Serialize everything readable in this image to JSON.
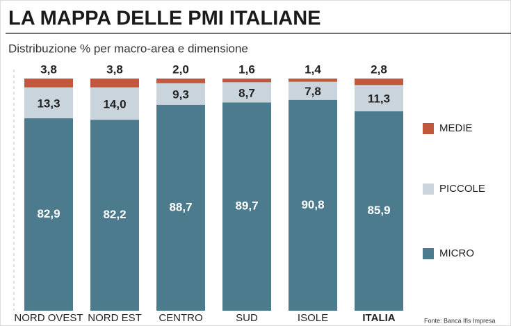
{
  "chart_data": {
    "type": "stacked_bar",
    "title": "LA MAPPA DELLE PMI ITALIANE",
    "subtitle": "Distribuzione % per macro-area e dimensione",
    "source": "Fonte: Banca Ifis Impresa",
    "categories": [
      "NORD OVEST",
      "NORD EST",
      "CENTRO",
      "SUD",
      "ISOLE",
      "ITALIA"
    ],
    "ylim": [
      0,
      100
    ],
    "series": [
      {
        "name": "MICRO",
        "color": "#4b7b8d",
        "values": [
          82.9,
          82.2,
          88.7,
          89.7,
          90.8,
          85.9
        ],
        "value_labels": [
          "82,9",
          "82,2",
          "88,7",
          "89,7",
          "90,8",
          "85,9"
        ]
      },
      {
        "name": "PICCOLE",
        "color": "#cad4dd",
        "values": [
          13.3,
          14.0,
          9.3,
          8.7,
          7.8,
          11.3
        ],
        "value_labels": [
          "13,3",
          "14,0",
          "9,3",
          "8,7",
          "7,8",
          "11,3"
        ]
      },
      {
        "name": "MEDIE",
        "color": "#c0583e",
        "values": [
          3.8,
          3.8,
          2.0,
          1.6,
          1.4,
          2.8
        ],
        "value_labels": [
          "3,8",
          "3,8",
          "2,0",
          "1,6",
          "1,4",
          "2,8"
        ]
      }
    ]
  }
}
